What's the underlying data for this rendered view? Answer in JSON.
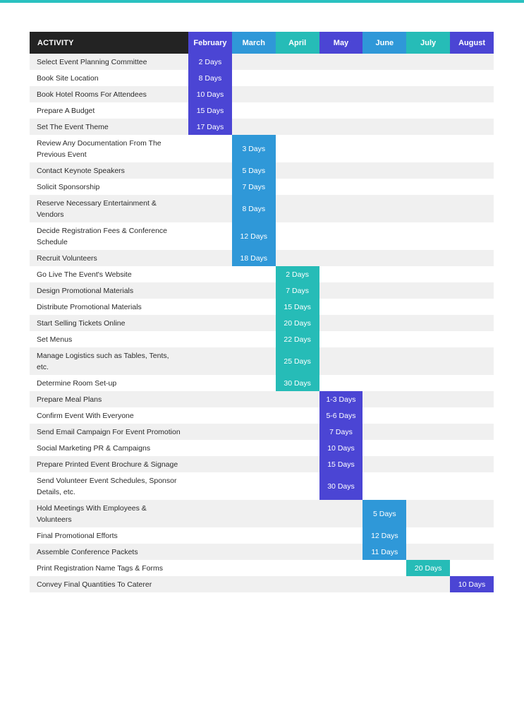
{
  "colors": {
    "top_bar": "#2ac1c0",
    "header_activity": "#232323",
    "February": "#4b45d4",
    "March": "#2f98d8",
    "April": "#26bcb7",
    "May": "#4b45d4",
    "June": "#2f98d8",
    "July": "#26bcb7",
    "August": "#4b45d4"
  },
  "header": {
    "activity": "ACTIVITY",
    "months": [
      "February",
      "March",
      "April",
      "May",
      "June",
      "July",
      "August"
    ]
  },
  "rows": [
    {
      "activity": "Select Event Planning Committee",
      "month": 0,
      "duration": "2 Days"
    },
    {
      "activity": "Book Site Location",
      "month": 0,
      "duration": "8 Days"
    },
    {
      "activity": "Book Hotel Rooms For Attendees",
      "month": 0,
      "duration": "10 Days"
    },
    {
      "activity": "Prepare A Budget",
      "month": 0,
      "duration": "15 Days"
    },
    {
      "activity": "Set The Event Theme",
      "month": 0,
      "duration": "17 Days"
    },
    {
      "activity": "Review Any Documentation From The Previous Event",
      "month": 1,
      "duration": "3 Days"
    },
    {
      "activity": "Contact Keynote Speakers",
      "month": 1,
      "duration": "5 Days"
    },
    {
      "activity": "Solicit Sponsorship",
      "month": 1,
      "duration": "7 Days"
    },
    {
      "activity": "Reserve Necessary Entertainment & Vendors",
      "month": 1,
      "duration": "8 Days"
    },
    {
      "activity": "Decide Registration Fees & Conference Schedule",
      "month": 1,
      "duration": "12 Days"
    },
    {
      "activity": "Recruit Volunteers",
      "month": 1,
      "duration": "18 Days"
    },
    {
      "activity": "Go Live The Event's Website",
      "month": 2,
      "duration": "2 Days"
    },
    {
      "activity": "Design Promotional Materials",
      "month": 2,
      "duration": "7 Days"
    },
    {
      "activity": "Distribute Promotional Materials",
      "month": 2,
      "duration": "15 Days"
    },
    {
      "activity": "Start Selling Tickets Online",
      "month": 2,
      "duration": "20 Days"
    },
    {
      "activity": "Set Menus",
      "month": 2,
      "duration": "22 Days"
    },
    {
      "activity": "Manage Logistics such as Tables, Tents, etc.",
      "month": 2,
      "duration": "25 Days"
    },
    {
      "activity": "Determine Room Set-up",
      "month": 2,
      "duration": "30 Days"
    },
    {
      "activity": "Prepare Meal Plans",
      "month": 3,
      "duration": "1-3 Days"
    },
    {
      "activity": "Confirm Event With Everyone",
      "month": 3,
      "duration": "5-6 Days"
    },
    {
      "activity": "Send Email Campaign For Event Promotion",
      "month": 3,
      "duration": "7 Days"
    },
    {
      "activity": "Social Marketing PR & Campaigns",
      "month": 3,
      "duration": "10 Days"
    },
    {
      "activity": "Prepare Printed Event Brochure & Signage",
      "month": 3,
      "duration": "15 Days"
    },
    {
      "activity": "Send Volunteer Event Schedules, Sponsor Details, etc.",
      "month": 3,
      "duration": "30 Days"
    },
    {
      "activity": "Hold Meetings With Employees & Volunteers",
      "month": 4,
      "duration": "5 Days"
    },
    {
      "activity": "Final Promotional Efforts",
      "month": 4,
      "duration": "12 Days"
    },
    {
      "activity": "Assemble Conference Packets",
      "month": 4,
      "duration": "11 Days"
    },
    {
      "activity": "Print Registration Name Tags & Forms",
      "month": 5,
      "duration": "20 Days"
    },
    {
      "activity": "Convey Final Quantities To Caterer",
      "month": 6,
      "duration": "10 Days"
    }
  ]
}
